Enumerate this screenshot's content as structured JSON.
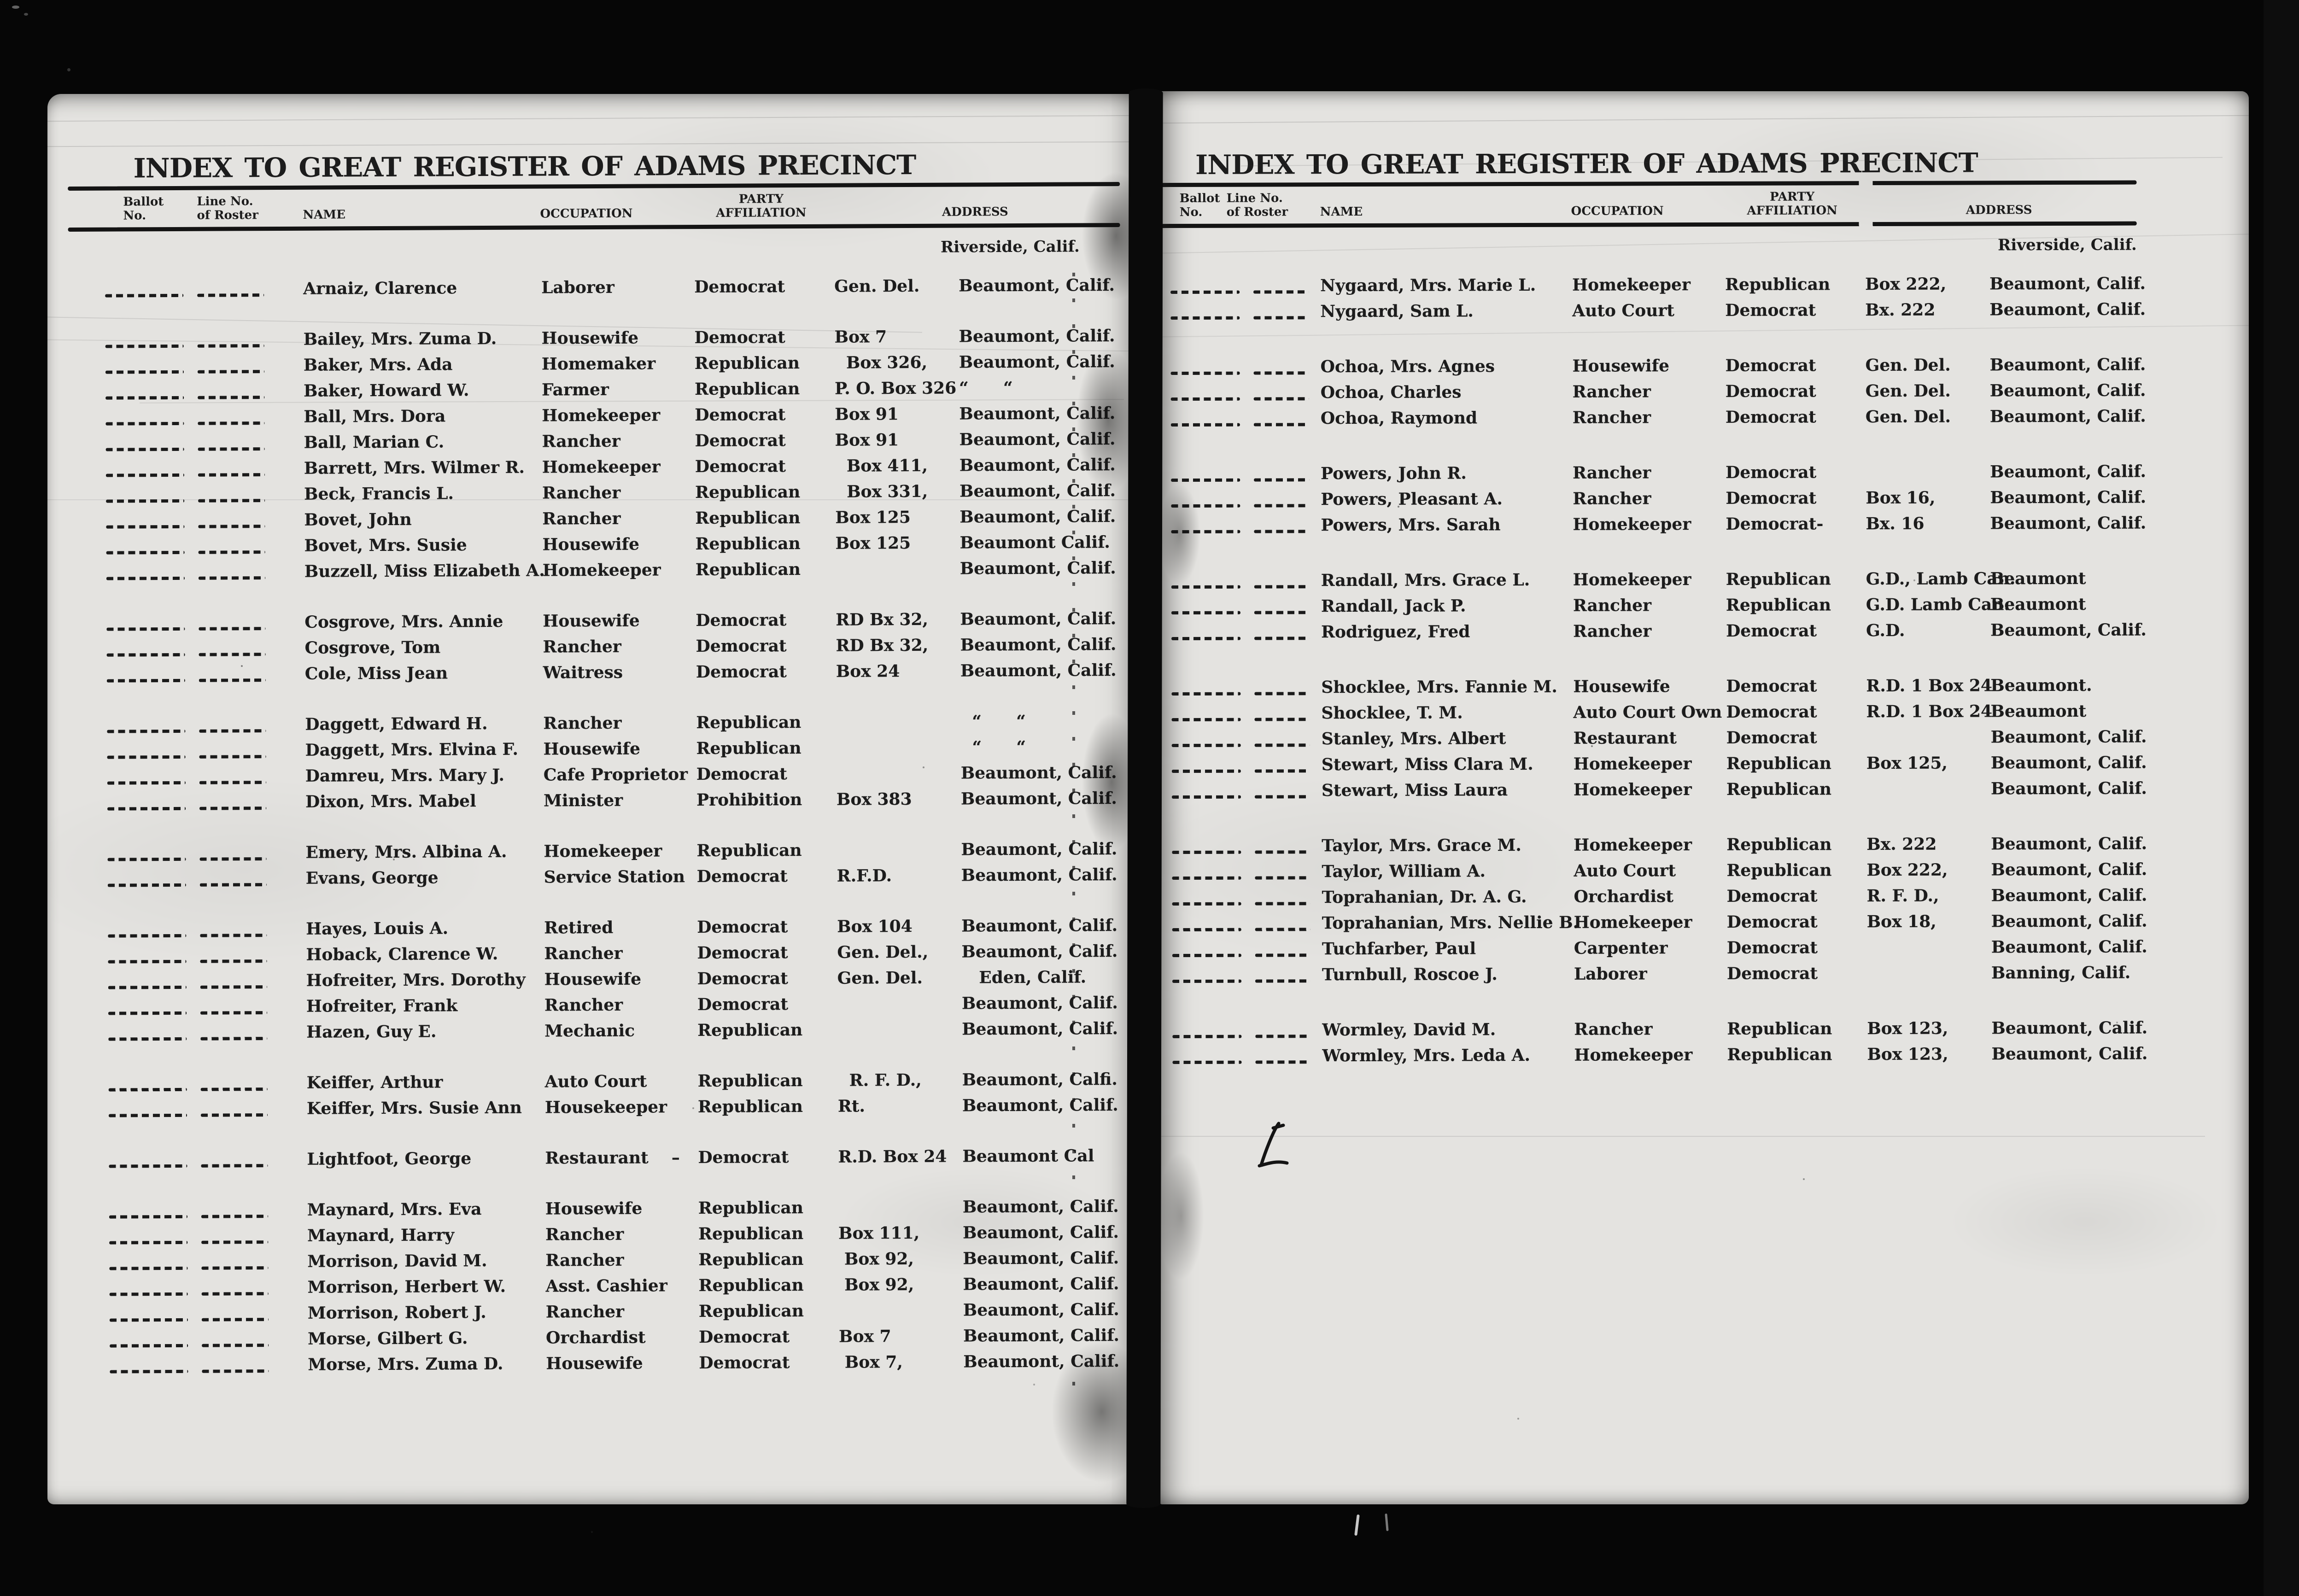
{
  "title": "INDEX TO GREAT REGISTER OF ADAMS PRECINCT",
  "region_label": "Riverside, Calif.",
  "columns": {
    "ballot_l1": "Ballot",
    "ballot_l2": "No.",
    "roster_l1": "Line No.",
    "roster_l2": "of Roster",
    "name": "NAME",
    "occupation": "OCCUPATION",
    "party_l1": "PARTY",
    "party_l2": "AFFILIATION",
    "address": "ADDRESS"
  },
  "left_page": {
    "groups": [
      [
        {
          "name": "Arnaiz, Clarence",
          "occupation": "Laborer",
          "party": "Democrat",
          "box": "Gen. Del.",
          "city": "Beaumont, Calif."
        }
      ],
      [
        {
          "name": "Bailey, Mrs. Zuma D.",
          "occupation": "Housewife",
          "party": "Democrat",
          "box": "Box 7",
          "city": "Beaumont, Calif."
        },
        {
          "name": "Baker, Mrs. Ada",
          "occupation": "Homemaker",
          "party": "Republican",
          "box": "  Box 326,",
          "city": "Beaumont, Calif."
        },
        {
          "name": "Baker, Howard W.",
          "occupation": "Farmer",
          "party": "Republican",
          "box": "P. O. Box 326",
          "city": "“      “"
        },
        {
          "name": "Ball, Mrs. Dora",
          "occupation": "Homekeeper",
          "party": "Democrat",
          "box": "Box 91",
          "city": "Beaumont, Calif."
        },
        {
          "name": "Ball, Marian C.",
          "occupation": "Rancher",
          "party": "Democrat",
          "box": "Box 91",
          "city": "Beaumont, Calif."
        },
        {
          "name": "Barrett, Mrs. Wilmer R.",
          "occupation": "Homekeeper",
          "party": "Democrat",
          "box": "  Box 411,",
          "city": "Beaumont, Calif."
        },
        {
          "name": "Beck, Francis L.",
          "occupation": "Rancher",
          "party": "Republican",
          "box": "  Box 331,",
          "city": "Beaumont, Calif."
        },
        {
          "name": "Bovet, John",
          "occupation": "Rancher",
          "party": "Republican",
          "box": "Box 125",
          "city": "Beaumont, Calif."
        },
        {
          "name": "Bovet, Mrs. Susie",
          "occupation": "Housewife",
          "party": "Republican",
          "box": "Box 125",
          "city": "Beaumont Calif."
        },
        {
          "name": "Buzzell, Miss Elizabeth A.",
          "occupation": "Homekeeper",
          "party": "Republican",
          "box": "",
          "city": "Beaumont, Calif."
        }
      ],
      [
        {
          "name": "Cosgrove, Mrs. Annie",
          "occupation": "Housewife",
          "party": "Democrat",
          "box": "RD Bx 32,",
          "city": "Beaumont, Calif."
        },
        {
          "name": "Cosgrove, Tom",
          "occupation": "Rancher",
          "party": "Democrat",
          "box": "RD Bx 32,",
          "city": "Beaumont, Calif."
        },
        {
          "name": "Cole, Miss Jean",
          "occupation": "Waitress",
          "party": "Democrat",
          "box": "Box 24",
          "city": "Beaumont, Calif."
        }
      ],
      [
        {
          "name": "Daggett, Edward H.",
          "occupation": "Rancher",
          "party": "Republican",
          "box": "",
          "city": "  “      “"
        },
        {
          "name": "Daggett, Mrs. Elvina F.",
          "occupation": "Housewife",
          "party": "Republican",
          "box": "",
          "city": "  “      “"
        },
        {
          "name": "Damreu, Mrs. Mary J.",
          "occupation": "Cafe Proprietor",
          "party": "Democrat",
          "box": "",
          "city": "Beaumont, Calif."
        },
        {
          "name": "Dixon, Mrs. Mabel",
          "occupation": "Minister",
          "party": "Prohibition",
          "box": "Box 383",
          "city": "Beaumont, Calif."
        }
      ],
      [
        {
          "name": "Emery, Mrs. Albina A.",
          "occupation": "Homekeeper",
          "party": "Republican",
          "box": "",
          "city": "Beaumont, Calif."
        },
        {
          "name": "Evans, George",
          "occupation": "Service Station",
          "party": "Democrat",
          "box": "R.F.D.",
          "city": "Beaumont, Calif."
        }
      ],
      [
        {
          "name": "Hayes, Louis A.",
          "occupation": "Retired",
          "party": "Democrat",
          "box": "Box 104",
          "city": "Beaumont, Calif."
        },
        {
          "name": "Hoback, Clarence W.",
          "occupation": "Rancher",
          "party": "Democrat",
          "box": "Gen. Del.,",
          "city": "Beaumont, Calif."
        },
        {
          "name": "Hofreiter, Mrs. Dorothy",
          "occupation": "Housewife",
          "party": "Democrat",
          "box": "Gen. Del.",
          "city": "   Eden, Calif."
        },
        {
          "name": "Hofreiter, Frank",
          "occupation": "Rancher",
          "party": "Democrat",
          "box": "",
          "city": "Beaumont, Calif."
        },
        {
          "name": "Hazen, Guy E.",
          "occupation": "Mechanic",
          "party": "Republican",
          "box": "",
          "city": "Beaumont, Calif."
        }
      ],
      [
        {
          "name": "Keiffer, Arthur",
          "occupation": "Auto Court",
          "party": "Republican",
          "box": "  R. F. D.,",
          "city": "Beaumont, Calfi."
        },
        {
          "name": "Keiffer, Mrs. Susie Ann",
          "occupation": "Housekeeper",
          "party": "Republican",
          "box": "Rt.",
          "city": "Beaumont, Calif."
        }
      ],
      [
        {
          "name": "Lightfoot, George",
          "occupation": "Restaurant    –",
          "party": "Democrat",
          "box": "R.D. Box 24",
          "city": "Beaumont Cal"
        }
      ],
      [
        {
          "name": "Maynard, Mrs. Eva",
          "occupation": "Housewife",
          "party": "Republican",
          "box": "",
          "city": "Beaumont, Calif."
        },
        {
          "name": "Maynard, Harry",
          "occupation": "Rancher",
          "party": "Republican",
          "box": "Box 111,",
          "city": "Beaumont, Calif."
        },
        {
          "name": "Morrison, David M.",
          "occupation": "Rancher",
          "party": "Republican",
          "box": " Box 92,",
          "city": "Beaumont, Calif."
        },
        {
          "name": "Morrison, Herbert W.",
          "occupation": "Asst. Cashier",
          "party": "Republican",
          "box": " Box 92,",
          "city": "Beaumont, Calif."
        },
        {
          "name": "Morrison, Robert J.",
          "occupation": "Rancher",
          "party": "Republican",
          "box": "",
          "city": "Beaumont, Calif."
        },
        {
          "name": "Morse, Gilbert G.",
          "occupation": "Orchardist",
          "party": "Democrat",
          "box": "Box 7",
          "city": "Beaumont, Calif."
        },
        {
          "name": "Morse, Mrs. Zuma D.",
          "occupation": "Housewife",
          "party": "Democrat",
          "box": " Box 7,",
          "city": "Beaumont, Calif."
        }
      ]
    ]
  },
  "right_page": {
    "groups": [
      [
        {
          "name": "Nygaard, Mrs. Marie L.",
          "occupation": "Homekeeper",
          "party": "Republican",
          "box": "Box 222,",
          "city": "Beaumont, Calif."
        },
        {
          "name": "Nygaard, Sam L.",
          "occupation": "Auto Court",
          "party": "Democrat",
          "box": "Bx. 222",
          "city": "Beaumont, Calif."
        }
      ],
      [
        {
          "name": "Ochoa, Mrs. Agnes",
          "occupation": "Housewife",
          "party": "Democrat",
          "box": "Gen. Del.",
          "city": "Beaumont, Calif."
        },
        {
          "name": "Ochoa, Charles",
          "occupation": "Rancher",
          "party": "Democrat",
          "box": "Gen. Del.",
          "city": "Beaumont, Calif."
        },
        {
          "name": "Ochoa, Raymond",
          "occupation": "Rancher",
          "party": "Democrat",
          "box": "Gen. Del.",
          "city": "Beaumont, Calif."
        }
      ],
      [
        {
          "name": "Powers, John R.",
          "occupation": "Rancher",
          "party": "Democrat",
          "box": "",
          "city": "Beaumont, Calif."
        },
        {
          "name": "Powers, Pleasant A.",
          "occupation": "Rancher",
          "party": "Democrat",
          "box": "Box 16,",
          "city": "Beaumont, Calif."
        },
        {
          "name": "Powers, Mrs. Sarah",
          "occupation": "Homekeeper",
          "party": "Democrat-",
          "box": "Bx. 16",
          "city": "Beaumont, Calif."
        }
      ],
      [
        {
          "name": "Randall, Mrs. Grace L.",
          "occupation": "Homekeeper",
          "party": "Republican",
          "box": "G.D., Lamb Can.",
          "city": "Beaumont"
        },
        {
          "name": "Randall, Jack P.",
          "occupation": "Rancher",
          "party": "Republican",
          "box": "G.D. Lamb Can.",
          "city": "Beaumont"
        },
        {
          "name": "Rodriguez, Fred",
          "occupation": "Rancher",
          "party": "Democrat",
          "box": "G.D.",
          "city": "Beaumont, Calif."
        }
      ],
      [
        {
          "name": "Shocklee, Mrs. Fannie M.",
          "occupation": "Housewife",
          "party": "Democrat",
          "box": "R.D. 1 Box 24",
          "city": "Beaumont."
        },
        {
          "name": "Shocklee, T. M.",
          "occupation": "Auto Court Own",
          "party": "Democrat",
          "box": "R.D. 1 Box 24",
          "city": "Beaumont"
        },
        {
          "name": "Stanley, Mrs. Albert",
          "occupation": "Restaurant",
          "party": "Democrat",
          "box": "",
          "city": "Beaumont, Calif."
        },
        {
          "name": "Stewart, Miss Clara M.",
          "occupation": "Homekeeper",
          "party": "Republican",
          "box": "Box 125,",
          "city": "Beaumont, Calif."
        },
        {
          "name": "Stewart, Miss Laura",
          "occupation": "Homekeeper",
          "party": "Republican",
          "box": "",
          "city": "Beaumont, Calif."
        }
      ],
      [
        {
          "name": "Taylor, Mrs. Grace M.",
          "occupation": "Homekeeper",
          "party": "Republican",
          "box": "Bx. 222",
          "city": "Beaumont, Calif."
        },
        {
          "name": "Taylor, William A.",
          "occupation": "Auto Court",
          "party": "Republican",
          "box": "Box 222,",
          "city": "Beaumont, Calif."
        },
        {
          "name": "Toprahanian, Dr. A. G.",
          "occupation": "Orchardist",
          "party": "Democrat",
          "box": "R. F. D.,",
          "city": "Beaumont, Calif."
        },
        {
          "name": "Toprahanian, Mrs. Nellie B.",
          "occupation": "Homekeeper",
          "party": "Democrat",
          "box": "Box 18,",
          "city": "Beaumont, Calif."
        },
        {
          "name": "Tuchfarber, Paul",
          "occupation": "Carpenter",
          "party": "Democrat",
          "box": "",
          "city": "Beaumont, Calif."
        },
        {
          "name": "Turnbull, Roscoe J.",
          "occupation": "Laborer",
          "party": "Democrat",
          "box": "",
          "city": "Banning, Calif."
        }
      ],
      [
        {
          "name": "Wormley, David M.",
          "occupation": "Rancher",
          "party": "Republican",
          "box": "Box 123,",
          "city": "Beaumont, Calif."
        },
        {
          "name": "Wormley, Mrs. Leda A.",
          "occupation": "Homekeeper",
          "party": "Republican",
          "box": "Box 123,",
          "city": "Beaumont, Calif."
        }
      ]
    ]
  }
}
